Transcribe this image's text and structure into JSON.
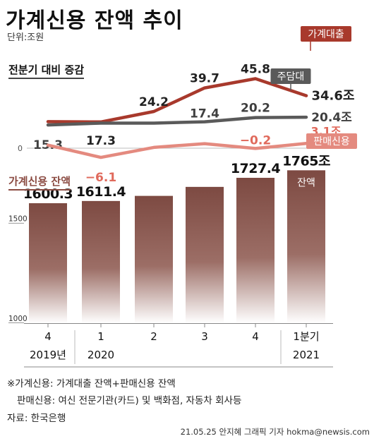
{
  "title": "가계신용 잔액 추이",
  "unit": "단위:조원",
  "chart_data": [
    {
      "type": "line",
      "title": "전분기 대비 증감",
      "categories": [
        "4",
        "1",
        "2",
        "3",
        "4",
        "1분기"
      ],
      "baseline_label": "0",
      "series": [
        {
          "name": "가계대출",
          "color": "#a8392c",
          "values": [
            17.5,
            17.3,
            24.2,
            39.7,
            45.8,
            34.6
          ],
          "labels": [
            "",
            "17.3",
            "24.2",
            "39.7",
            "45.8",
            "34.6조"
          ]
        },
        {
          "name": "주담대",
          "color": "#5a5a5a",
          "values": [
            15.3,
            16.5,
            16.5,
            17.4,
            20.2,
            20.4
          ],
          "labels": [
            "15.3",
            "",
            "",
            "17.4",
            "20.2",
            "20.4조"
          ]
        },
        {
          "name": "판매신용",
          "color": "#e48a7f",
          "values": [
            2.0,
            -6.1,
            0.5,
            3.0,
            -0.2,
            3.1
          ],
          "labels": [
            "",
            "−6.1",
            "",
            "",
            "−0.2",
            "3.1조"
          ]
        }
      ]
    },
    {
      "type": "bar",
      "title": "가계신용 잔액",
      "categories": [
        "4",
        "1",
        "2",
        "3",
        "4",
        "1분기"
      ],
      "values": [
        1600.3,
        1611.4,
        1637.0,
        1682.0,
        1727.4,
        1765
      ],
      "labels": [
        "1600.3",
        "1611.4",
        "",
        "",
        "1727.4",
        "1765조"
      ],
      "bar_inner_label": "잔액",
      "yticks": [
        "1500",
        "1000"
      ],
      "ylim": [
        1000,
        1800
      ],
      "color_top": "#7d4a42",
      "color_bottom": "#ffffff"
    }
  ],
  "xaxis": {
    "top_row": [
      "4",
      "1",
      "2",
      "3",
      "4",
      "1분기"
    ],
    "bottom_row": [
      "2019년",
      "2020",
      "",
      "",
      "",
      "2021"
    ]
  },
  "notes": {
    "line1": "※가계신용: 가계대출 잔액+판매신용 잔액",
    "line2": "판매신용: 여신 전문기관(카드) 및 백화점, 자동차 회사등",
    "source": "자료: 한국은행"
  },
  "credit": "21.05.25 안지혜 그래픽 기자 hokma@newsis.com"
}
